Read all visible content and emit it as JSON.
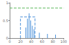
{
  "chart_data": {
    "type": "bar",
    "xlim": [
      0,
      100
    ],
    "xticks": [
      0,
      20,
      40,
      60,
      80,
      100
    ],
    "ylim": [
      0,
      1
    ],
    "yticks": [
      0,
      0.5,
      1
    ],
    "grid": false,
    "series": [
      {
        "type": "bar",
        "color": "#4a90d9",
        "x": [
          30,
          33,
          36,
          39,
          42,
          45,
          55,
          70,
          85
        ],
        "values": [
          0.3,
          0.55,
          0.7,
          0.5,
          0.35,
          0.25,
          0.15,
          0.12,
          0.1
        ]
      },
      {
        "type": "line",
        "color": "#5cb85c",
        "line_style": "dashed",
        "x": [
          0,
          100
        ],
        "values": [
          0.85,
          0.85
        ]
      },
      {
        "type": "line",
        "color": "#4a90d9",
        "line_style": "dashed",
        "x": [
          20,
          20,
          47,
          47
        ],
        "values": [
          0,
          0.6,
          0.6,
          0
        ]
      }
    ]
  }
}
